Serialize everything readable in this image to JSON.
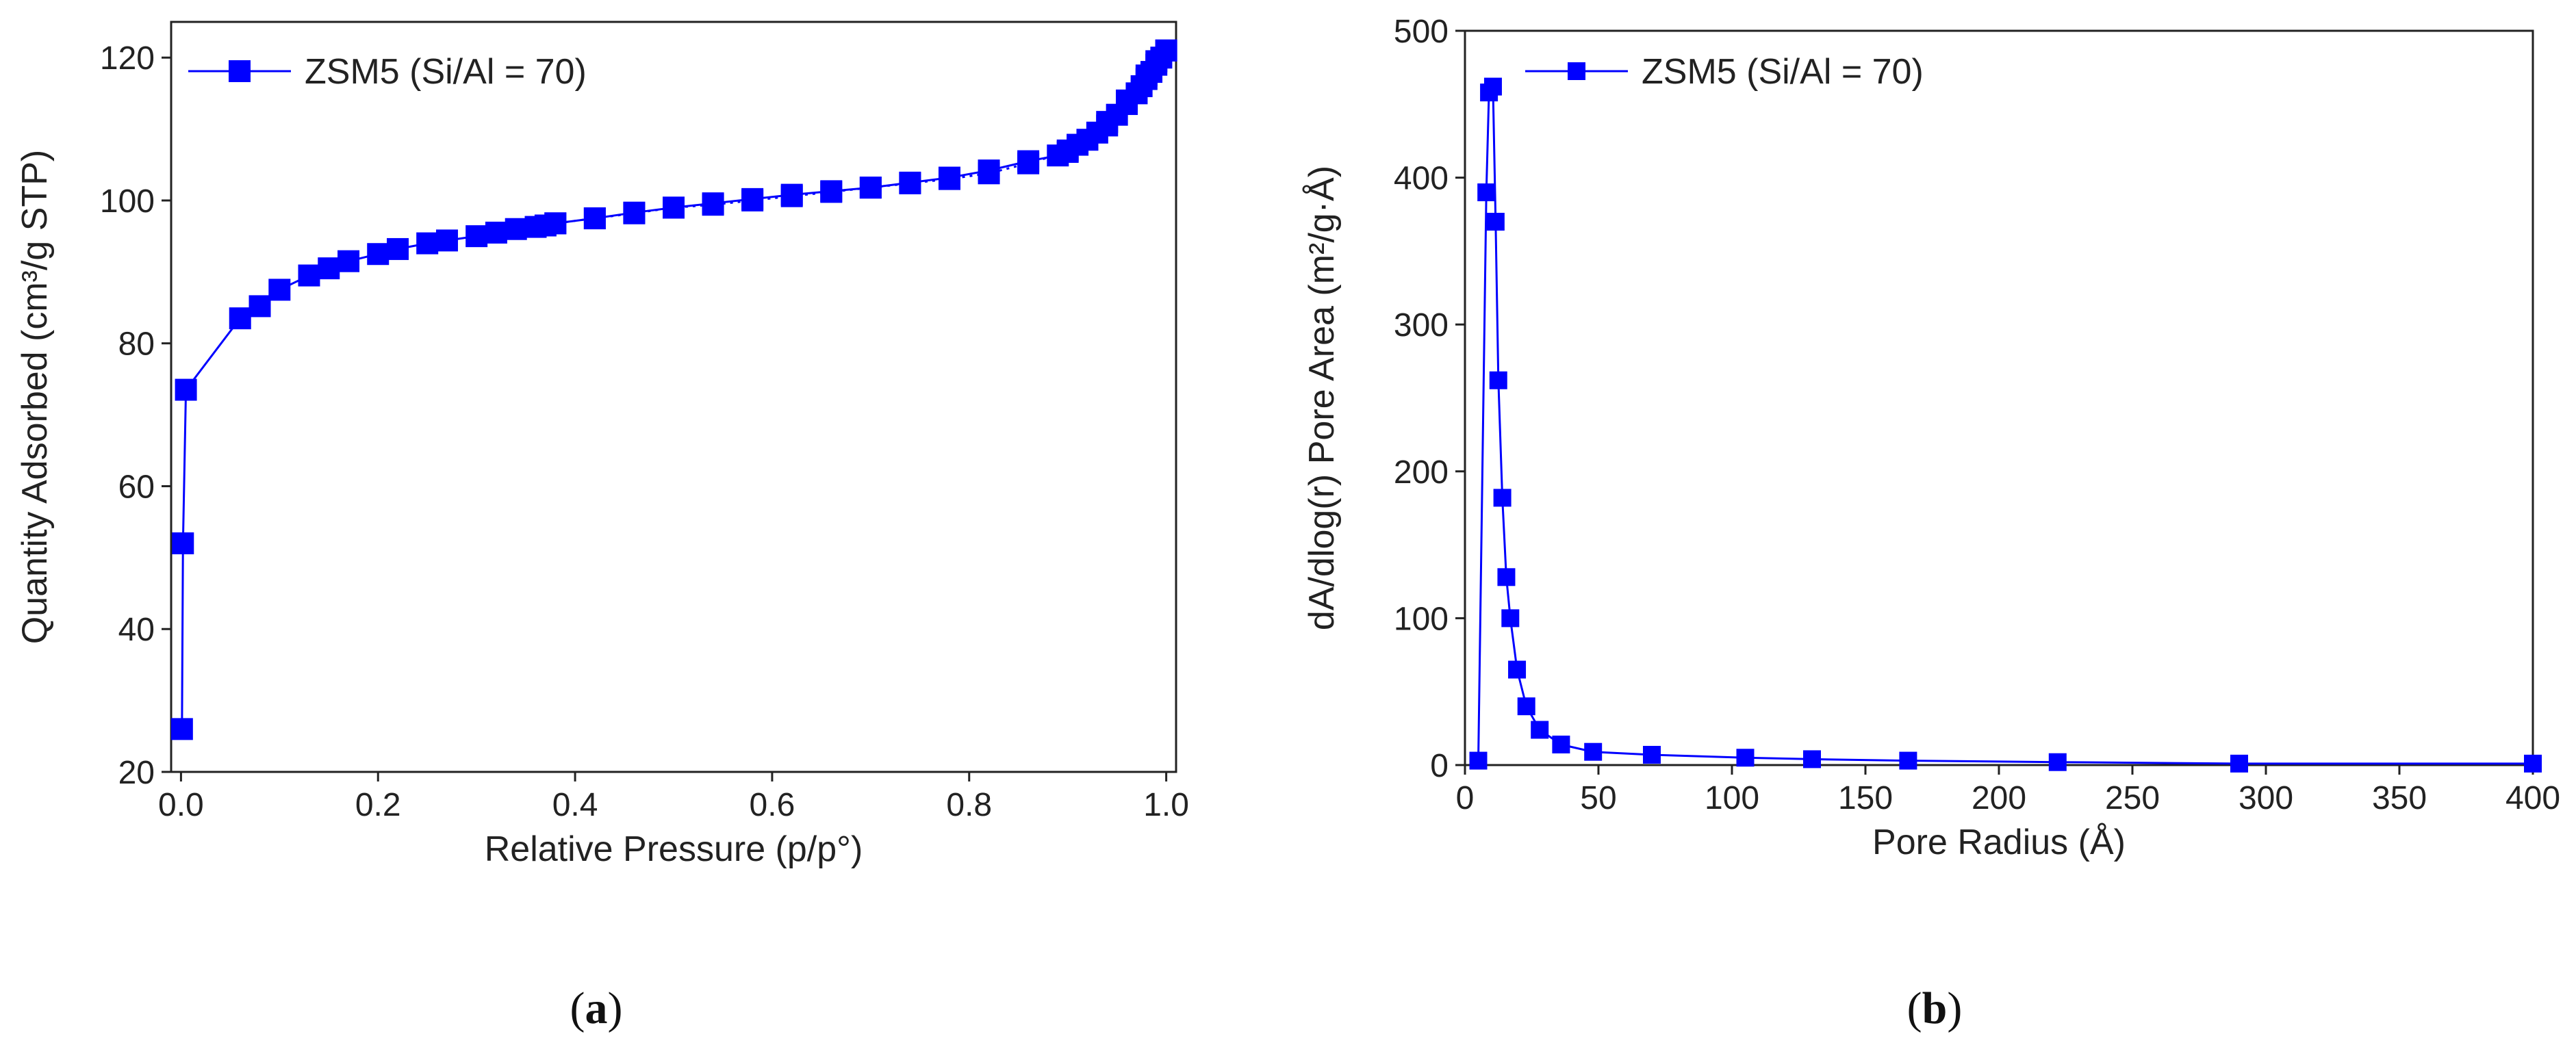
{
  "colors": {
    "series": "#0000ff",
    "axis": "#222222",
    "background": "#ffffff"
  },
  "chart_data": [
    {
      "type": "line",
      "marker": "square",
      "line_style": "dotted",
      "title": "",
      "xlabel": "Relative Pressure (p/p°)",
      "ylabel": "Quantity Adsorbed (cm³/g STP)",
      "xlim": [
        -0.01,
        1.01
      ],
      "ylim": [
        20,
        125
      ],
      "xticks": [
        0.0,
        0.2,
        0.4,
        0.6,
        0.8,
        1.0
      ],
      "xtick_labels": [
        "0.0",
        "0.2",
        "0.4",
        "0.6",
        "0.8",
        "1.0"
      ],
      "yticks": [
        20,
        40,
        60,
        80,
        100,
        120
      ],
      "ytick_labels": [
        "20",
        "40",
        "60",
        "80",
        "100",
        "120"
      ],
      "legend": {
        "position": "top-left",
        "entries": [
          "ZSM5 (Si/Al = 70)"
        ]
      },
      "caption": {
        "open": "(",
        "letter": "a",
        "close": ")"
      },
      "series": [
        {
          "name": "ZSM5 (Si/Al = 70)",
          "x": [
            0.001,
            0.002,
            0.005,
            0.06,
            0.08,
            0.1,
            0.13,
            0.15,
            0.17,
            0.2,
            0.22,
            0.25,
            0.27,
            0.3,
            0.32,
            0.34,
            0.36,
            0.37,
            0.38,
            0.42,
            0.46,
            0.5,
            0.54,
            0.58,
            0.62,
            0.66,
            0.7,
            0.74,
            0.78,
            0.82,
            0.86,
            0.89,
            0.9,
            0.91,
            0.93,
            0.94,
            0.95,
            0.96,
            0.97,
            0.975,
            0.98,
            0.985,
            0.99,
            0.995,
            1.0
          ],
          "y": [
            26,
            52,
            73.5,
            83.5,
            85.2,
            87.5,
            89.5,
            90.5,
            91.5,
            92.5,
            93.2,
            94,
            94.4,
            95,
            95.5,
            96,
            96.3,
            96.5,
            96.8,
            97.5,
            98.3,
            99,
            99.6,
            100.2,
            100.8,
            101.3,
            101.8,
            102.5,
            103.2,
            104.2,
            105.5,
            106.3,
            107,
            107.8,
            109.5,
            110.5,
            112,
            113.5,
            115,
            116,
            117,
            118,
            119,
            120,
            121
          ],
          "x_desorption": [
            1.0,
            0.99,
            0.98,
            0.96,
            0.94,
            0.92,
            0.9,
            0.86,
            0.82,
            0.78,
            0.74,
            0.7,
            0.66,
            0.62,
            0.58,
            0.54,
            0.5,
            0.46,
            0.42,
            0.38
          ],
          "y_desorption": [
            121,
            119.5,
            117.5,
            114,
            111,
            108.5,
            106.8,
            105.2,
            103.8,
            103,
            102.4,
            101.8,
            101.2,
            100.6,
            100,
            99.4,
            99,
            98.2,
            97.5,
            96.8
          ]
        }
      ]
    },
    {
      "type": "line",
      "marker": "square",
      "line_style": "solid",
      "title": "",
      "xlabel": "Pore Radius (Å)",
      "ylabel": "dA/dlog(r) Pore Area (m²/g·Å)",
      "xlim": [
        0,
        400
      ],
      "ylim": [
        0,
        500
      ],
      "xticks": [
        0,
        50,
        100,
        150,
        200,
        250,
        300,
        350,
        400
      ],
      "xtick_labels": [
        "0",
        "50",
        "100",
        "150",
        "200",
        "250",
        "300",
        "350",
        "400"
      ],
      "yticks": [
        0,
        100,
        200,
        300,
        400,
        500
      ],
      "ytick_labels": [
        "0",
        "100",
        "200",
        "300",
        "400",
        "500"
      ],
      "legend": {
        "position": "top-center",
        "entries": [
          "ZSM5 (Si/Al = 70)"
        ]
      },
      "caption": {
        "open": "(",
        "letter": "b",
        "close": ")"
      },
      "series": [
        {
          "name": "ZSM5 (Si/Al = 70)",
          "x": [
            5,
            8,
            9,
            10.5,
            11.5,
            12.5,
            14,
            15.5,
            17,
            19.5,
            23,
            28,
            36,
            48,
            70,
            105,
            130,
            166,
            222,
            290,
            400
          ],
          "y": [
            3,
            390,
            458,
            462,
            370,
            262,
            182,
            128,
            100,
            65,
            40,
            24,
            14,
            9,
            7,
            5,
            4,
            3,
            2,
            1,
            1
          ]
        }
      ]
    }
  ]
}
